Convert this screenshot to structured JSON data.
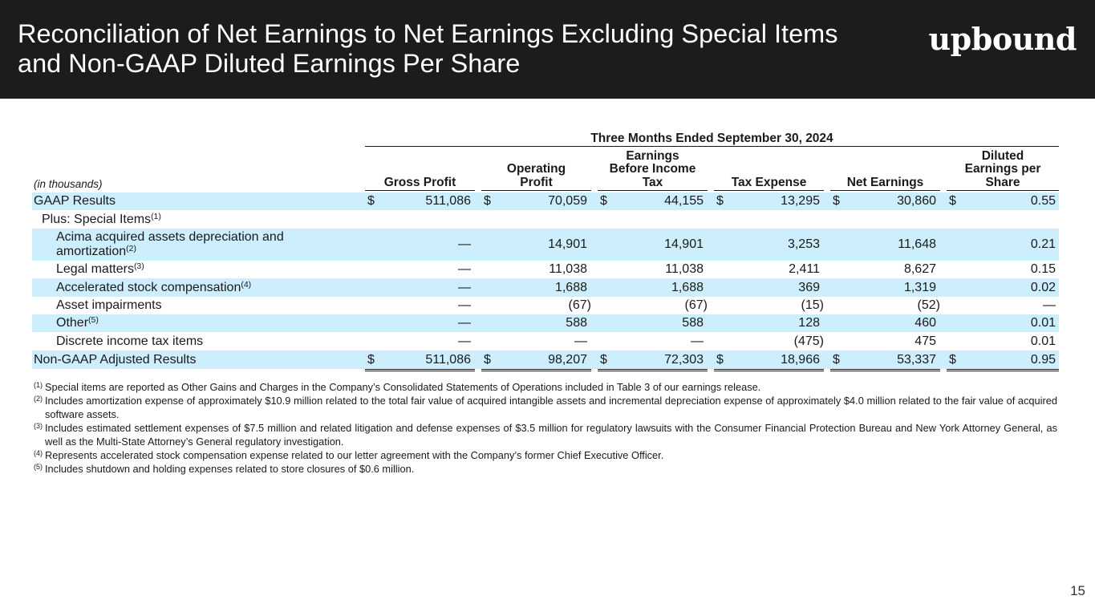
{
  "header": {
    "title": "Reconciliation of Net Earnings to Net Earnings Excluding Special Items and Non-GAAP Diluted Earnings Per Share",
    "logo_text": "upbound"
  },
  "table": {
    "period": "Three Months Ended September 30, 2024",
    "unit_note": "(in thousands)",
    "columns": [
      "Gross Profit",
      "Operating Profit",
      "Earnings Before Income Tax",
      "Tax Expense",
      "Net Earnings",
      "Diluted Earnings per Share"
    ],
    "rows": [
      {
        "label": "GAAP Results",
        "sup": "",
        "values": [
          "511,086",
          "70,059",
          "44,155",
          "13,295",
          "30,860",
          "0.55"
        ],
        "dollar": "$"
      },
      {
        "label": "Plus: Special Items",
        "sup": "(1)",
        "values": [
          "",
          "",
          "",
          "",
          "",
          ""
        ],
        "dollar": ""
      },
      {
        "label": "Acima acquired assets depreciation and amortization",
        "sup": "(2)",
        "values": [
          "—",
          "14,901",
          "14,901",
          "3,253",
          "11,648",
          "0.21"
        ],
        "dollar": ""
      },
      {
        "label": "Legal matters",
        "sup": "(3)",
        "values": [
          "—",
          "11,038",
          "11,038",
          "2,411",
          "8,627",
          "0.15"
        ],
        "dollar": ""
      },
      {
        "label": "Accelerated stock compensation",
        "sup": "(4)",
        "values": [
          "—",
          "1,688",
          "1,688",
          "369",
          "1,319",
          "0.02"
        ],
        "dollar": ""
      },
      {
        "label": "Asset impairments",
        "sup": "",
        "values": [
          "—",
          "(67)",
          "(67)",
          "(15)",
          "(52)",
          "—"
        ],
        "dollar": ""
      },
      {
        "label": "Other",
        "sup": "(5)",
        "values": [
          "—",
          "588",
          "588",
          "128",
          "460",
          "0.01"
        ],
        "dollar": ""
      },
      {
        "label": "Discrete income tax items",
        "sup": "",
        "values": [
          "—",
          "—",
          "—",
          "(475)",
          "475",
          "0.01"
        ],
        "dollar": ""
      },
      {
        "label": "Non-GAAP Adjusted Results",
        "sup": "",
        "values": [
          "511,086",
          "98,207",
          "72,303",
          "18,966",
          "53,337",
          "0.95"
        ],
        "dollar": "$"
      }
    ]
  },
  "footnotes": [
    {
      "marker": "(1)",
      "text": "Special items are reported as Other Gains and Charges in the Company’s Consolidated Statements of Operations included in Table 3 of our earnings release."
    },
    {
      "marker": "(2)",
      "text": "Includes amortization expense of approximately $10.9 million related to the total fair value of acquired intangible assets and incremental depreciation expense of approximately $4.0 million related to the fair value of acquired software assets."
    },
    {
      "marker": "(3)",
      "text": "Includes estimated settlement expenses of $7.5 million and related litigation and defense expenses of $3.5 million for regulatory lawsuits with the Consumer Financial Protection Bureau and New York Attorney General, as well as the Multi-State Attorney’s General regulatory investigation."
    },
    {
      "marker": "(4)",
      "text": "Represents accelerated stock compensation expense related to our letter agreement with the Company’s former Chief Executive Officer."
    },
    {
      "marker": "(5)",
      "text": "Includes shutdown and holding expenses related to store closures of $0.6 million."
    }
  ],
  "page_number": "15"
}
